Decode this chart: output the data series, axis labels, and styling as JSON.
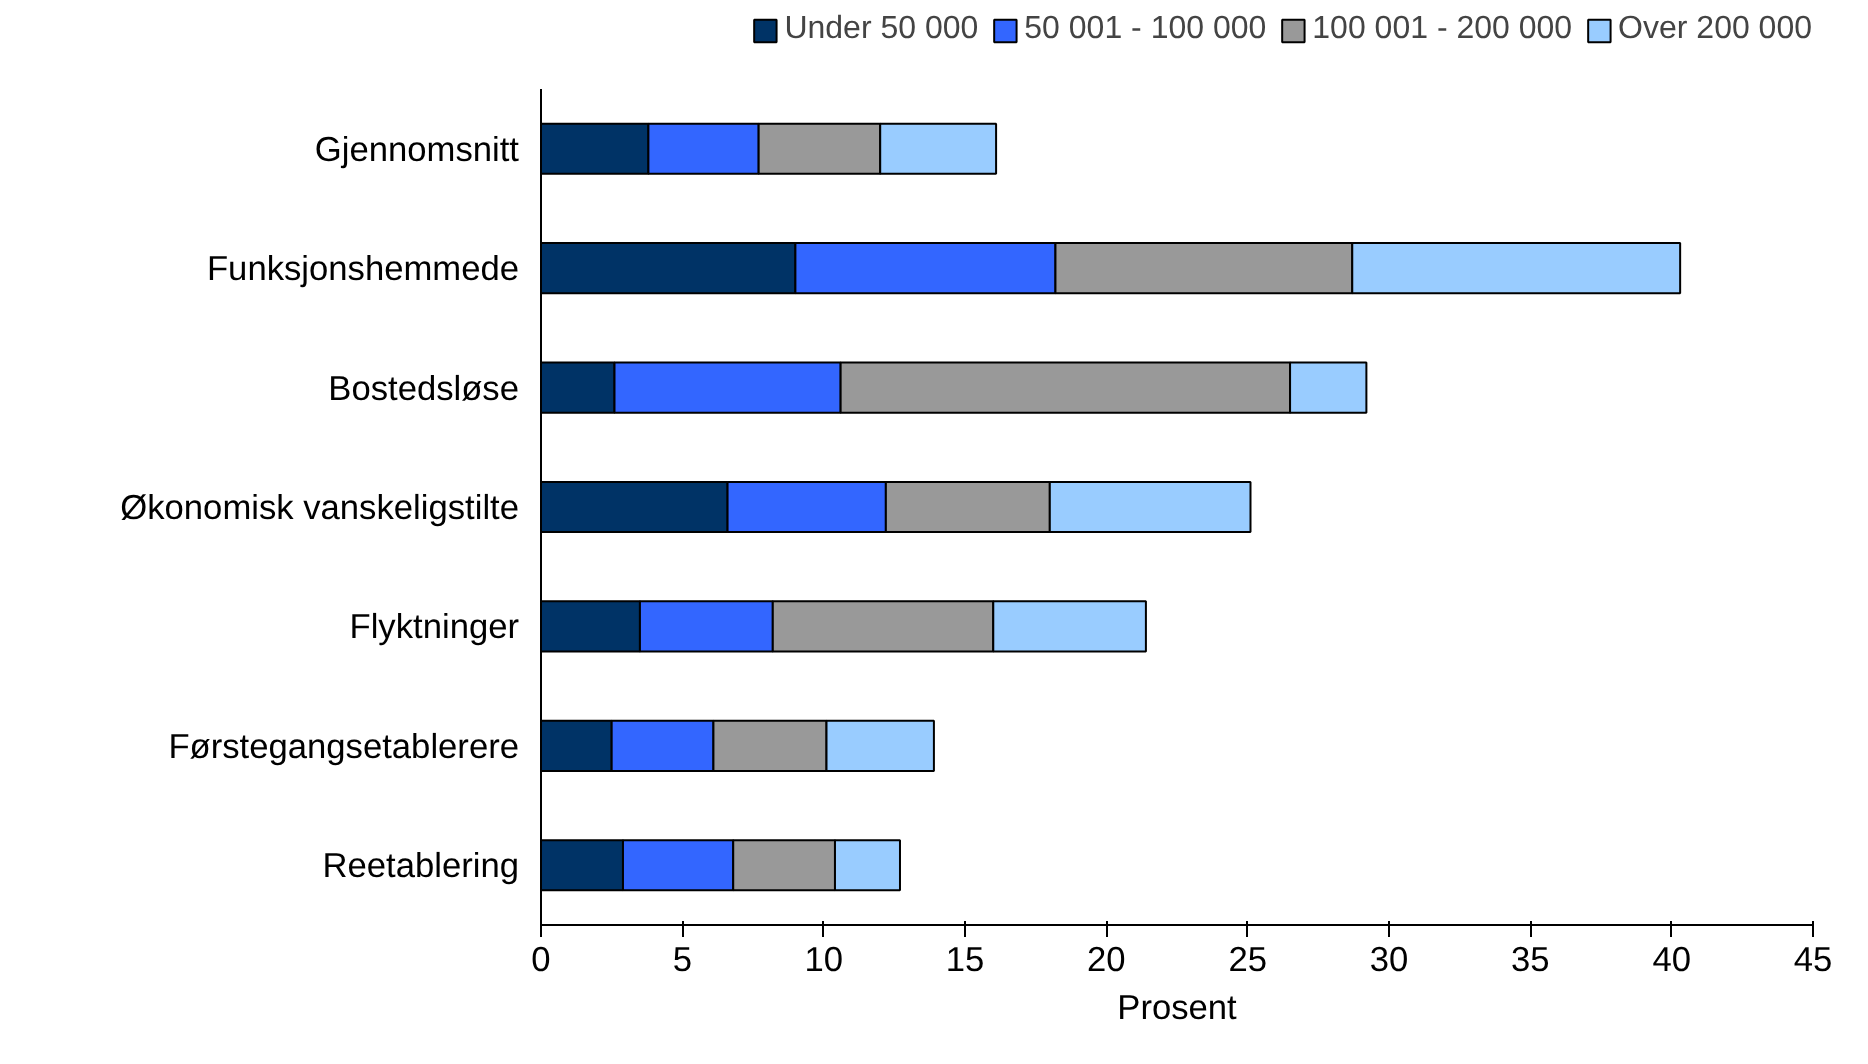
{
  "chart_data": {
    "type": "bar",
    "orientation": "horizontal",
    "stacked": true,
    "xlabel": "Prosent",
    "categories": [
      "Gjennomsnitt",
      "Funksjonshemmede",
      "Bostedsløse",
      "Økonomisk vanskeligstilte",
      "Flyktninger",
      "Førstegangsetablerere",
      "Reetablering"
    ],
    "series": [
      {
        "name": "Under 50 000",
        "color": "#003366",
        "values": [
          3.8,
          9.0,
          2.6,
          6.6,
          3.5,
          2.5,
          2.9
        ]
      },
      {
        "name": "50 001 - 100 000",
        "color": "#3366ff",
        "values": [
          3.9,
          9.2,
          8.0,
          5.6,
          4.7,
          3.6,
          3.9
        ]
      },
      {
        "name": "100 001 - 200 000",
        "color": "#999999",
        "values": [
          4.3,
          10.5,
          15.9,
          5.8,
          7.8,
          4.0,
          3.6
        ]
      },
      {
        "name": "Over 200 000",
        "color": "#99ccff",
        "values": [
          4.1,
          11.6,
          2.7,
          7.1,
          5.4,
          3.8,
          2.3
        ]
      }
    ],
    "xlim": [
      0,
      45
    ],
    "xticks": [
      0,
      5,
      10,
      15,
      20,
      25,
      30,
      35,
      40,
      45
    ],
    "grid": false,
    "legend": "top right"
  }
}
